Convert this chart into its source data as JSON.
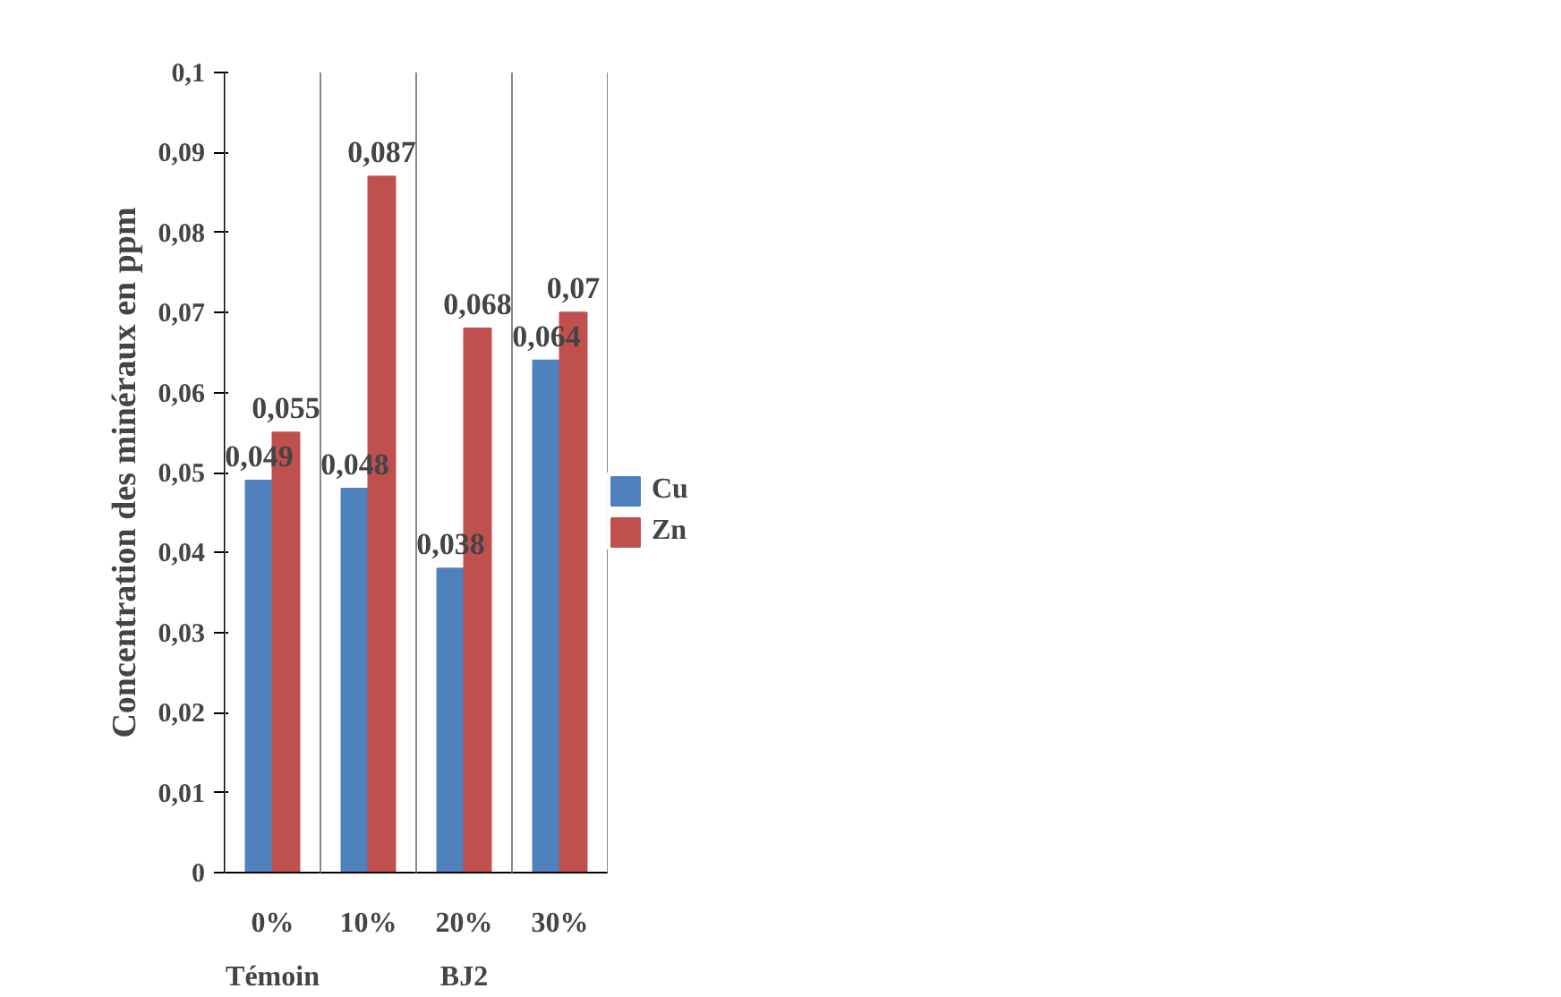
{
  "chart_data": {
    "type": "bar",
    "ylabel": "Concentration des minéraux en ppm",
    "categories": [
      "0%",
      "10%",
      "20%",
      "30%"
    ],
    "series": [
      {
        "name": "Cu",
        "color": "#4f81bd",
        "values": [
          0.049,
          0.048,
          0.038,
          0.064
        ],
        "value_labels": [
          "0,049",
          "0,048",
          "0,038",
          "0,064"
        ]
      },
      {
        "name": "Zn",
        "color": "#c0504d",
        "values": [
          0.055,
          0.087,
          0.068,
          0.07
        ],
        "value_labels": [
          "0,055",
          "0,087",
          "0,068",
          "0,07"
        ]
      }
    ],
    "ylim": [
      0,
      0.1
    ],
    "yticks": [
      {
        "value": 0,
        "label": "0"
      },
      {
        "value": 0.01,
        "label": "0,01"
      },
      {
        "value": 0.02,
        "label": "0,02"
      },
      {
        "value": 0.03,
        "label": "0,03"
      },
      {
        "value": 0.04,
        "label": "0,04"
      },
      {
        "value": 0.05,
        "label": "0,05"
      },
      {
        "value": 0.06,
        "label": "0,06"
      },
      {
        "value": 0.07,
        "label": "0,07"
      },
      {
        "value": 0.08,
        "label": "0,08"
      },
      {
        "value": 0.09,
        "label": "0,09"
      },
      {
        "value": 0.1,
        "label": "0,1"
      }
    ],
    "annotations": [
      "Témoin",
      "BJ2"
    ],
    "grid": false,
    "legend": "right"
  }
}
